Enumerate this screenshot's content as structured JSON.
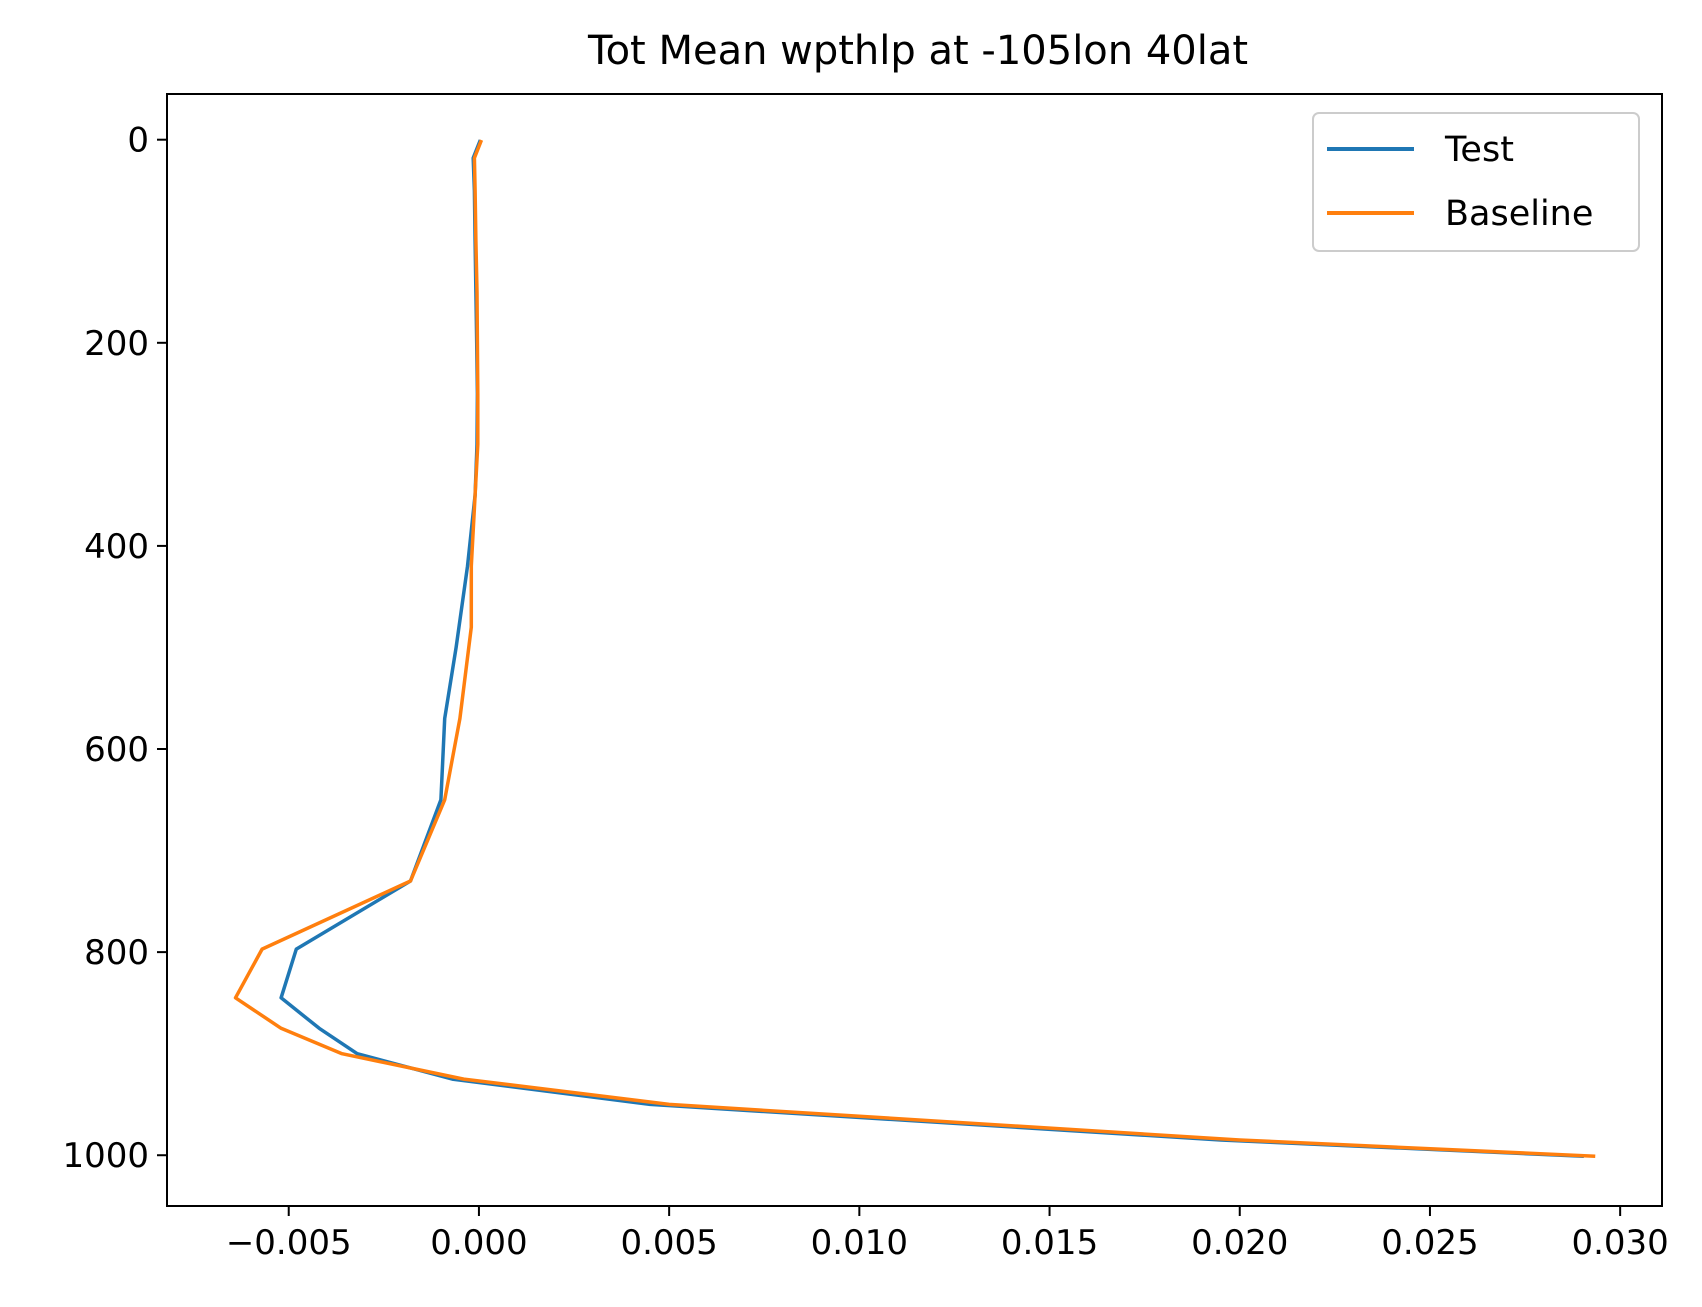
{
  "chart_data": {
    "type": "line",
    "title": "Tot Mean wpthlp at -105lon 40lat",
    "xlabel": "",
    "ylabel": "",
    "xlim": [
      -0.0082,
      0.0311
    ],
    "ylim": [
      1050,
      -45
    ],
    "y_inverted": true,
    "grid": false,
    "legend_position": "upper right",
    "x_ticks": [
      -0.005,
      0.0,
      0.005,
      0.01,
      0.015,
      0.02,
      0.025,
      0.03
    ],
    "x_tick_labels": [
      "−0.005",
      "0.000",
      "0.005",
      "0.010",
      "0.015",
      "0.020",
      "0.025",
      "0.030"
    ],
    "y_ticks": [
      0,
      200,
      400,
      600,
      800,
      1000
    ],
    "y_tick_labels": [
      "0",
      "200",
      "400",
      "600",
      "800",
      "1000"
    ],
    "series": [
      {
        "name": "Test",
        "color": "#1f77b4",
        "points": [
          [
            2e-05,
            2
          ],
          [
            -0.00015,
            18
          ],
          [
            -0.00012,
            50
          ],
          [
            -0.0001,
            100
          ],
          [
            -8e-05,
            150
          ],
          [
            -6e-05,
            200
          ],
          [
            -4e-05,
            250
          ],
          [
            -5e-05,
            300
          ],
          [
            -0.0001,
            350
          ],
          [
            -0.0003,
            420
          ],
          [
            -0.0006,
            500
          ],
          [
            -0.0009,
            570
          ],
          [
            -0.001,
            650
          ],
          [
            -0.0018,
            730
          ],
          [
            -0.0048,
            797
          ],
          [
            -0.0052,
            845
          ],
          [
            -0.0042,
            875
          ],
          [
            -0.0032,
            900
          ],
          [
            -0.0007,
            925
          ],
          [
            0.0045,
            950
          ],
          [
            0.0195,
            985
          ],
          [
            0.029,
            1001
          ]
        ]
      },
      {
        "name": "Baseline",
        "color": "#ff7f0e",
        "points": [
          [
            5e-05,
            2
          ],
          [
            -0.00012,
            18
          ],
          [
            -0.0001,
            50
          ],
          [
            -8e-05,
            100
          ],
          [
            -5e-05,
            150
          ],
          [
            -4e-05,
            200
          ],
          [
            -3e-05,
            250
          ],
          [
            -3e-05,
            300
          ],
          [
            -0.0001,
            350
          ],
          [
            -0.0002,
            420
          ],
          [
            -0.0002,
            480
          ],
          [
            -0.0005,
            570
          ],
          [
            -0.0009,
            650
          ],
          [
            -0.0018,
            730
          ],
          [
            -0.0057,
            797
          ],
          [
            -0.0064,
            845
          ],
          [
            -0.0052,
            875
          ],
          [
            -0.0036,
            900
          ],
          [
            -0.0004,
            925
          ],
          [
            0.005,
            950
          ],
          [
            0.02,
            985
          ],
          [
            0.0293,
            1001
          ]
        ]
      }
    ]
  }
}
